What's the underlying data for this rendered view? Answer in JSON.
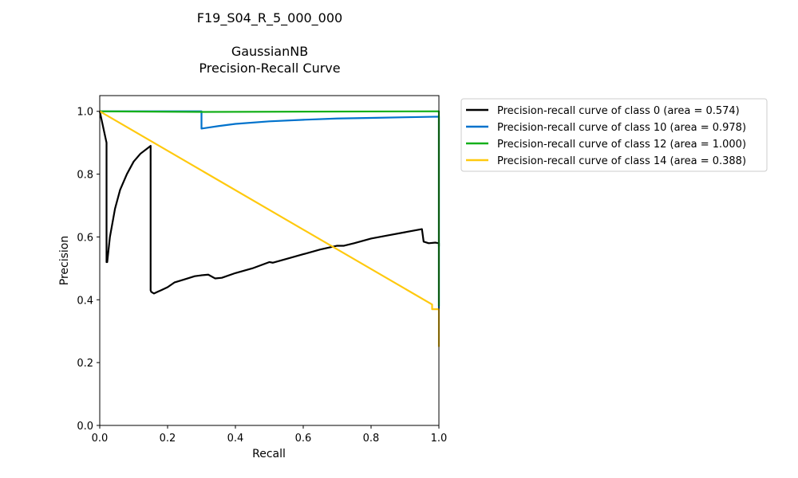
{
  "chart_data": {
    "type": "line",
    "title_lines": [
      "F19_S04_R_5_000_000",
      "",
      "GaussianNB",
      "Precision-Recall Curve"
    ],
    "xlabel": "Recall",
    "ylabel": "Precision",
    "xlim": [
      0.0,
      1.0
    ],
    "ylim": [
      0.0,
      1.05
    ],
    "xticks": [
      0.0,
      0.2,
      0.4,
      0.6,
      0.8,
      1.0
    ],
    "yticks": [
      0.0,
      0.2,
      0.4,
      0.6,
      0.8,
      1.0
    ],
    "grid": false,
    "legend_placement": "outside-top-right",
    "series": [
      {
        "name": "Precision-recall curve of class 0 (area = 0.574)",
        "color": "#000000",
        "x": [
          0.0,
          0.02,
          0.02,
          0.022,
          0.03,
          0.045,
          0.06,
          0.08,
          0.1,
          0.12,
          0.15,
          0.15,
          0.152,
          0.16,
          0.17,
          0.18,
          0.2,
          0.22,
          0.25,
          0.28,
          0.3,
          0.32,
          0.34,
          0.36,
          0.4,
          0.45,
          0.5,
          0.51,
          0.55,
          0.6,
          0.65,
          0.7,
          0.72,
          0.75,
          0.8,
          0.85,
          0.9,
          0.95,
          0.955,
          0.97,
          0.99,
          1.0,
          1.0
        ],
        "y": [
          1.0,
          0.9,
          0.52,
          0.52,
          0.6,
          0.69,
          0.75,
          0.8,
          0.84,
          0.865,
          0.89,
          0.43,
          0.425,
          0.42,
          0.425,
          0.43,
          0.44,
          0.455,
          0.465,
          0.475,
          0.478,
          0.48,
          0.468,
          0.47,
          0.485,
          0.5,
          0.52,
          0.518,
          0.53,
          0.545,
          0.56,
          0.572,
          0.572,
          0.58,
          0.595,
          0.605,
          0.615,
          0.625,
          0.585,
          0.58,
          0.582,
          0.58,
          0.57
        ]
      },
      {
        "name": "Precision-recall curve of class 10 (area = 0.978)",
        "color": "#0072cc",
        "x": [
          0.0,
          0.3,
          0.3,
          0.35,
          0.4,
          0.5,
          0.6,
          0.7,
          0.8,
          0.9,
          1.0,
          1.0
        ],
        "y": [
          1.0,
          1.0,
          0.945,
          0.953,
          0.96,
          0.968,
          0.973,
          0.977,
          0.979,
          0.981,
          0.983,
          0.37
        ]
      },
      {
        "name": "Precision-recall curve of class 12 (area = 1.000)",
        "color": "#15b01a",
        "x": [
          0.0,
          0.3,
          1.0,
          1.0
        ],
        "y": [
          1.0,
          0.998,
          1.0,
          0.38
        ]
      },
      {
        "name": "Precision-recall curve of class 14 (area = 0.388)",
        "color": "#ffc90e",
        "x": [
          0.0,
          0.98,
          0.98,
          1.0,
          1.0
        ],
        "y": [
          1.0,
          0.385,
          0.37,
          0.37,
          0.25
        ]
      }
    ]
  }
}
